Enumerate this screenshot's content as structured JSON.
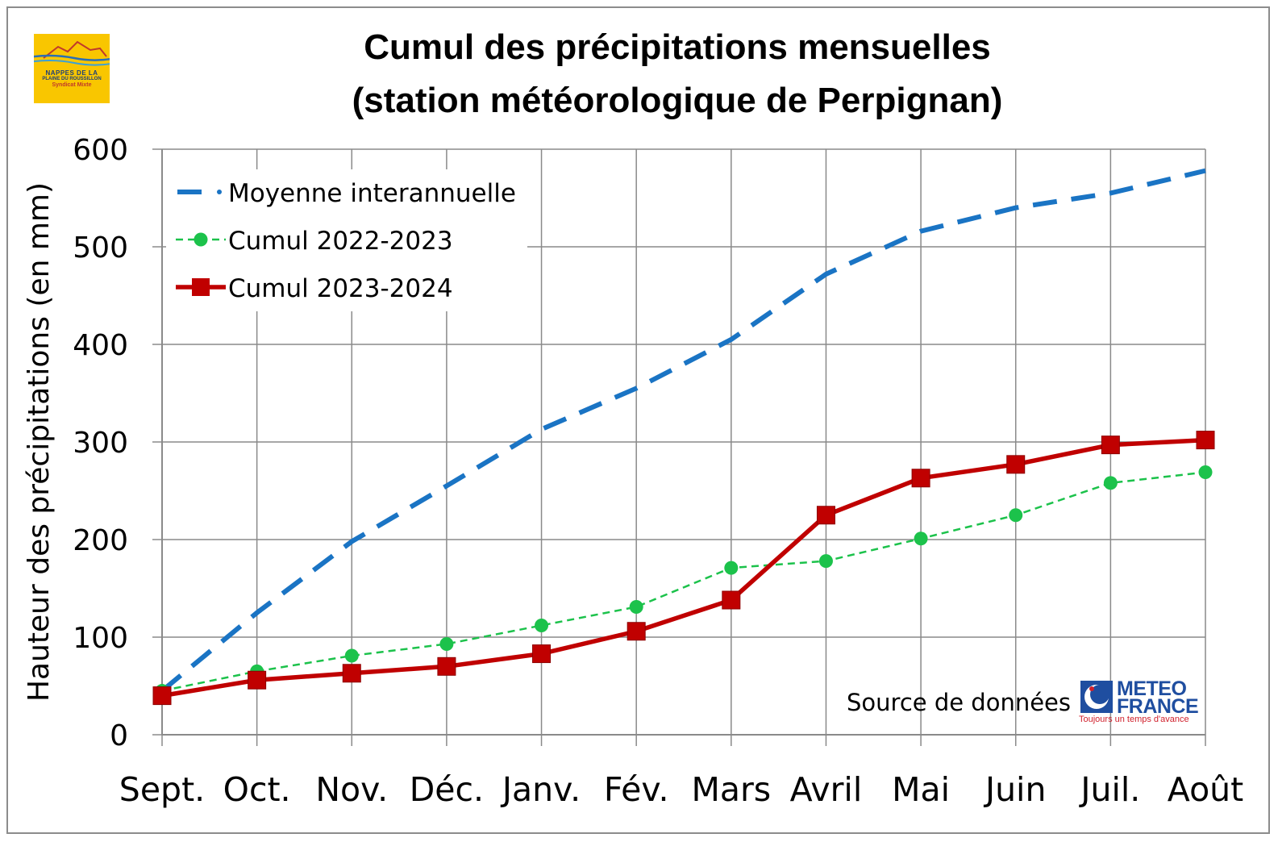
{
  "logo": {
    "line1": "NAPPES DE LA",
    "line2": "PLAINE DU ROUSSILLON",
    "line3": "Syndicat Mixte"
  },
  "source": {
    "label": "Source de données :",
    "brand_line1": "METEO",
    "brand_line2": "FRANCE",
    "tagline": "Toujours un temps d'avance"
  },
  "chart_data": {
    "type": "line",
    "title_line1": "Cumul des précipitations mensuelles",
    "title_line2": "(station météorologique de Perpignan)",
    "ylabel": "Hauteur des précipitations (en mm)",
    "xlabel": "",
    "ylim": [
      0,
      600
    ],
    "yticks": [
      "0",
      "100",
      "200",
      "300",
      "400",
      "500",
      "600"
    ],
    "categories": [
      "Sept.",
      "Oct.",
      "Nov.",
      "Déc.",
      "Janv.",
      "Fév.",
      "Mars",
      "Avril",
      "Mai",
      "Juin",
      "Juil.",
      "Août"
    ],
    "grid": true,
    "legend_position": "top-left",
    "series": [
      {
        "name": "Moyenne interannuelle",
        "color": "#1a74c4",
        "style": "dashed",
        "values": [
          45,
          125,
          198,
          255,
          313,
          355,
          405,
          472,
          516,
          540,
          555,
          578
        ]
      },
      {
        "name": "Cumul 2022-2023",
        "color": "#1cc24b",
        "style": "dotted-markers",
        "values": [
          45,
          65,
          81,
          93,
          112,
          131,
          171,
          178,
          201,
          225,
          258,
          269
        ]
      },
      {
        "name": "Cumul 2023-2024",
        "color": "#c00000",
        "style": "solid-square-markers",
        "values": [
          40,
          56,
          63,
          70,
          83,
          106,
          138,
          225,
          263,
          277,
          297,
          302
        ]
      }
    ]
  }
}
